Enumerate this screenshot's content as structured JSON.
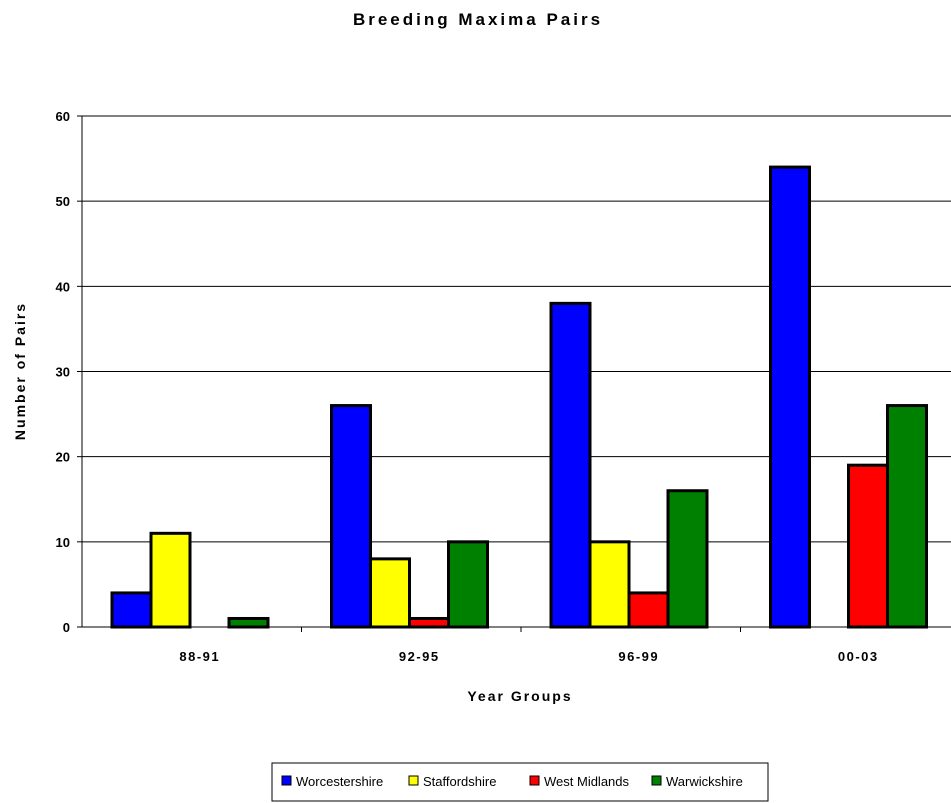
{
  "chart_data": {
    "type": "bar",
    "title": "Breeding Maxima Pairs",
    "xlabel": "Year Groups",
    "ylabel": "Number of Pairs",
    "categories": [
      "88-91",
      "92-95",
      "96-99",
      "00-03"
    ],
    "ylim": [
      0,
      60
    ],
    "yticks": [
      0,
      10,
      20,
      30,
      40,
      50,
      60
    ],
    "grid": true,
    "legend_position": "bottom",
    "series": [
      {
        "name": "Worcestershire",
        "color": "#0000FF",
        "values": [
          4,
          26,
          38,
          54
        ]
      },
      {
        "name": "Staffordshire",
        "color": "#FFFF00",
        "values": [
          11,
          8,
          10,
          0
        ]
      },
      {
        "name": "West Midlands",
        "color": "#FF0000",
        "values": [
          0,
          1,
          4,
          19
        ]
      },
      {
        "name": "Warwickshire",
        "color": "#008000",
        "values": [
          1,
          10,
          16,
          26
        ]
      }
    ]
  }
}
